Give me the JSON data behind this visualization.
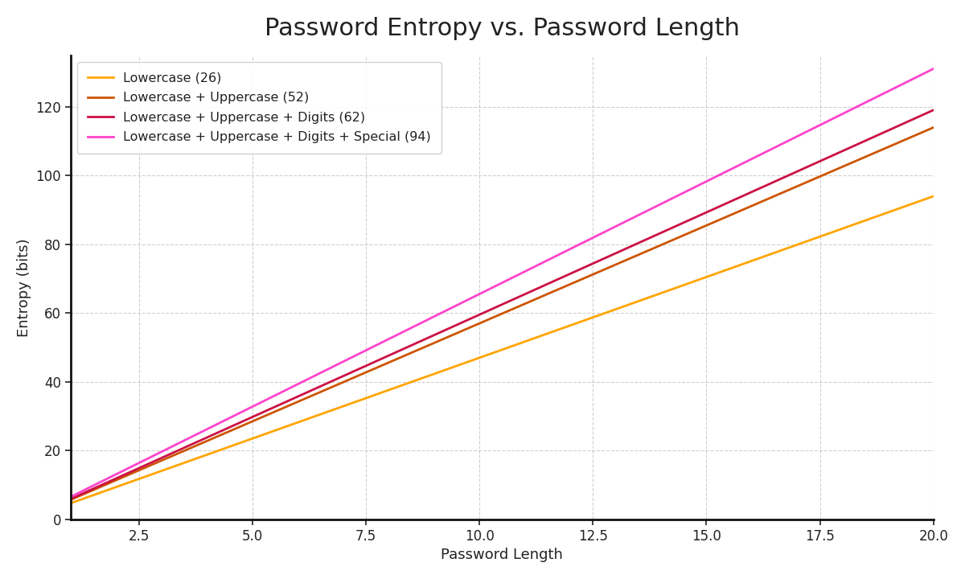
{
  "title": "Password Entropy vs. Password Length",
  "xlabel": "Password Length",
  "ylabel": "Entropy (bits)",
  "x_start": 1,
  "x_end": 20,
  "charset_sizes": [
    26,
    52,
    62,
    94
  ],
  "line_colors": [
    "#FFA500",
    "#CC5500",
    "#CC1144",
    "#FF44CC"
  ],
  "line_labels": [
    "Lowercase (26)",
    "Lowercase + Uppercase (52)",
    "Lowercase + Uppercase + Digits (62)",
    "Lowercase + Uppercase + Digits + Special (94)"
  ],
  "line_width": 2.0,
  "ylim": [
    0,
    135
  ],
  "xlim": [
    1,
    20
  ],
  "grid_color": "#bbbbbb",
  "grid_style": "--",
  "grid_alpha": 0.7,
  "bg_color": "#ffffff",
  "legend_loc": "upper left",
  "title_fontsize": 22,
  "axis_label_fontsize": 13,
  "tick_fontsize": 12
}
